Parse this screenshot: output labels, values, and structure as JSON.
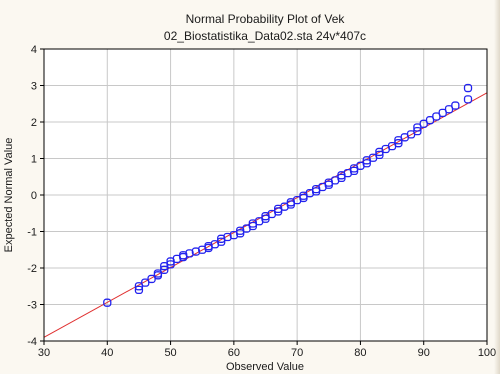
{
  "chart_data": {
    "type": "scatter",
    "title": "Normal Probability Plot of Vek",
    "subtitle": "02_Biostatistika_Data02.sta 24v*407c",
    "xlabel": "Observed Value",
    "ylabel": "Expected Normal Value",
    "xlim": [
      30,
      100
    ],
    "ylim": [
      -4,
      4
    ],
    "xticks": [
      "30",
      "40",
      "50",
      "60",
      "70",
      "80",
      "90",
      "100"
    ],
    "yticks": [
      "4",
      "3",
      "2",
      "1",
      "0",
      "-1",
      "-2",
      "-3",
      "-4"
    ],
    "grid": true,
    "fit_line": {
      "x": [
        30,
        100
      ],
      "y": [
        -3.9,
        2.8
      ]
    },
    "marker_color": "#2222ee",
    "line_color": "#e03030",
    "points": [
      [
        40,
        -2.95
      ],
      [
        45,
        -2.6
      ],
      [
        45,
        -2.5
      ],
      [
        46,
        -2.4
      ],
      [
        47,
        -2.3
      ],
      [
        48,
        -2.2
      ],
      [
        48,
        -2.15
      ],
      [
        49,
        -2.05
      ],
      [
        49,
        -1.95
      ],
      [
        50,
        -1.9
      ],
      [
        50,
        -1.82
      ],
      [
        51,
        -1.75
      ],
      [
        52,
        -1.7
      ],
      [
        52,
        -1.65
      ],
      [
        53,
        -1.6
      ],
      [
        54,
        -1.55
      ],
      [
        55,
        -1.5
      ],
      [
        56,
        -1.45
      ],
      [
        56,
        -1.4
      ],
      [
        57,
        -1.35
      ],
      [
        58,
        -1.28
      ],
      [
        58,
        -1.2
      ],
      [
        59,
        -1.15
      ],
      [
        60,
        -1.1
      ],
      [
        61,
        -1.05
      ],
      [
        61,
        -0.98
      ],
      [
        62,
        -0.92
      ],
      [
        63,
        -0.85
      ],
      [
        63,
        -0.78
      ],
      [
        64,
        -0.72
      ],
      [
        65,
        -0.65
      ],
      [
        65,
        -0.58
      ],
      [
        66,
        -0.52
      ],
      [
        67,
        -0.45
      ],
      [
        67,
        -0.38
      ],
      [
        68,
        -0.32
      ],
      [
        69,
        -0.26
      ],
      [
        69,
        -0.2
      ],
      [
        70,
        -0.14
      ],
      [
        71,
        -0.08
      ],
      [
        71,
        -0.02
      ],
      [
        72,
        0.05
      ],
      [
        73,
        0.1
      ],
      [
        73,
        0.16
      ],
      [
        74,
        0.22
      ],
      [
        75,
        0.28
      ],
      [
        75,
        0.34
      ],
      [
        76,
        0.4
      ],
      [
        77,
        0.47
      ],
      [
        77,
        0.54
      ],
      [
        78,
        0.6
      ],
      [
        79,
        0.66
      ],
      [
        79,
        0.73
      ],
      [
        80,
        0.8
      ],
      [
        81,
        0.87
      ],
      [
        81,
        0.95
      ],
      [
        82,
        1.02
      ],
      [
        83,
        1.1
      ],
      [
        83,
        1.18
      ],
      [
        84,
        1.26
      ],
      [
        85,
        1.34
      ],
      [
        86,
        1.42
      ],
      [
        86,
        1.5
      ],
      [
        87,
        1.58
      ],
      [
        88,
        1.66
      ],
      [
        89,
        1.75
      ],
      [
        89,
        1.85
      ],
      [
        90,
        1.95
      ],
      [
        91,
        2.05
      ],
      [
        92,
        2.15
      ],
      [
        93,
        2.25
      ],
      [
        94,
        2.35
      ],
      [
        95,
        2.45
      ],
      [
        97,
        2.62
      ],
      [
        97,
        2.93
      ]
    ]
  }
}
